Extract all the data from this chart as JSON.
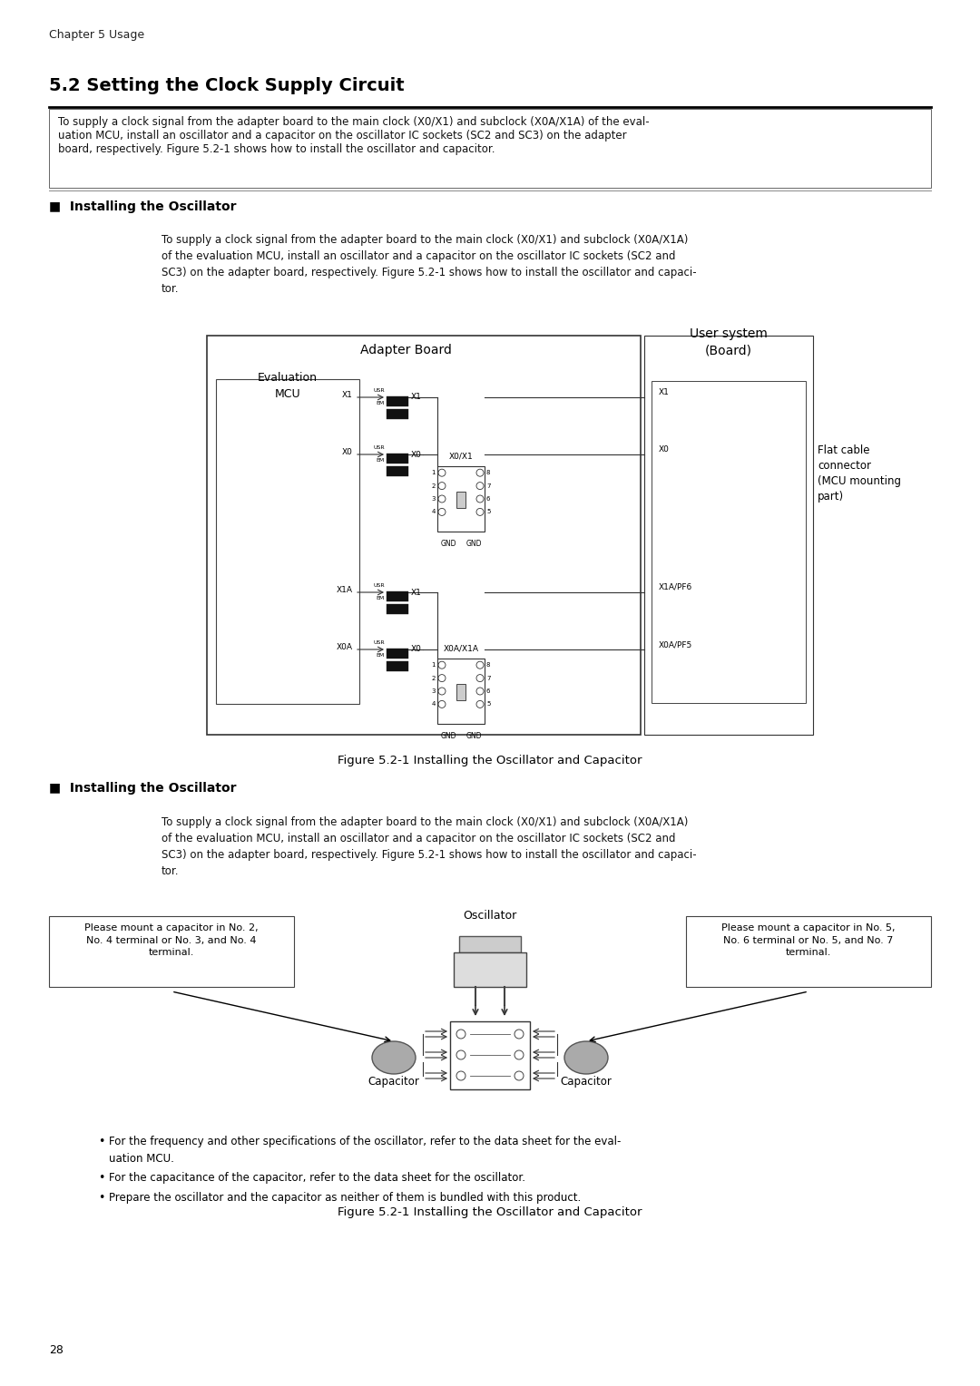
{
  "page_bg": "#ffffff",
  "chapter_header": "Chapter 5 Usage",
  "section_title": "5.2 Setting the Clock Supply Circuit",
  "intro_text": "To supply a clock signal from the adapter board to the main clock (X0/X1) and subclock (X0A/X1A) of the eval-\nuation MCU, install an oscillator and a capacitor on the oscillator IC sockets (SC2 and SC3) on the adapter\nboard, respectively. Figure 5.2-1 shows how to install the oscillator and capacitor.",
  "section1_header": "■  Installing the Oscillator",
  "section1_body": "To supply a clock signal from the adapter board to the main clock (X0/X1) and subclock (X0A/X1A)\nof the evaluation MCU, install an oscillator and a capacitor on the oscillator IC sockets (SC2 and\nSC3) on the adapter board, respectively. Figure 5.2-1 shows how to install the oscillator and capaci-\ntor.",
  "fig1_caption": "Figure 5.2-1 Installing the Oscillator and Capacitor",
  "section2_header": "■  Installing the Oscillator",
  "section2_body": "To supply a clock signal from the adapter board to the main clock (X0/X1) and subclock (X0A/X1A)\nof the evaluation MCU, install an oscillator and a capacitor on the oscillator IC sockets (SC2 and\nSC3) on the adapter board, respectively. Figure 5.2-1 shows how to install the oscillator and capaci-\ntor.",
  "bullet1": "For the frequency and other specifications of the oscillator, refer to the data sheet for the eval-\nuation MCU.",
  "bullet2": "For the capacitance of the capacitor, refer to the data sheet for the oscillator.",
  "bullet3": "Prepare the oscillator and the capacitor as neither of them is bundled with this product.",
  "fig2_caption": "Figure 5.2-1 Installing the Oscillator and Capacitor",
  "page_number": "28"
}
